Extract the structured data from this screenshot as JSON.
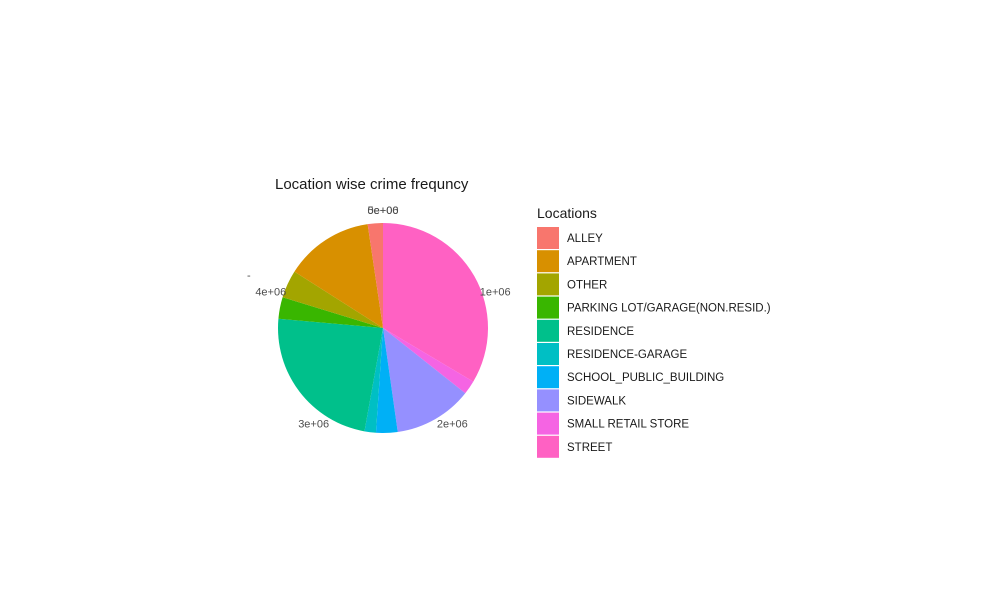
{
  "chart_data": {
    "type": "pie",
    "title": "Location wise crime frequncy",
    "legend_title": "Locations",
    "legend_position": "right",
    "radial_ticks": [
      "0e+00",
      "5e+06",
      "1e+06",
      "2e+06",
      "3e+06",
      "4e+06"
    ],
    "radial_total": 5000000,
    "axis_mark": "-",
    "start_angle_deg": 0,
    "direction": "clockwise",
    "slices": [
      {
        "label": "STREET",
        "value": 1720000,
        "color": "#FF61C3"
      },
      {
        "label": "SMALL RETAIL STORE",
        "value": 110000,
        "color": "#F564E3"
      },
      {
        "label": "SIDEWALK",
        "value": 620000,
        "color": "#9590FF"
      },
      {
        "label": "SCHOOL_PUBLIC_BUILDING",
        "value": 170000,
        "color": "#00B0F6"
      },
      {
        "label": "RESIDENCE-GARAGE",
        "value": 90000,
        "color": "#00BFC4"
      },
      {
        "label": "RESIDENCE",
        "value": 1210000,
        "color": "#00C08B"
      },
      {
        "label": "PARKING LOT/GARAGE(NON.RESID.)",
        "value": 170000,
        "color": "#39B600"
      },
      {
        "label": "OTHER",
        "value": 220000,
        "color": "#A3A500"
      },
      {
        "label": "APARTMENT",
        "value": 700000,
        "color": "#D89000"
      },
      {
        "label": "ALLEY",
        "value": 120000,
        "color": "#F8766D"
      }
    ],
    "legend_order": [
      "ALLEY",
      "APARTMENT",
      "OTHER",
      "PARKING LOT/GARAGE(NON.RESID.)",
      "RESIDENCE",
      "RESIDENCE-GARAGE",
      "SCHOOL_PUBLIC_BUILDING",
      "SIDEWALK",
      "SMALL RETAIL STORE",
      "STREET"
    ]
  }
}
